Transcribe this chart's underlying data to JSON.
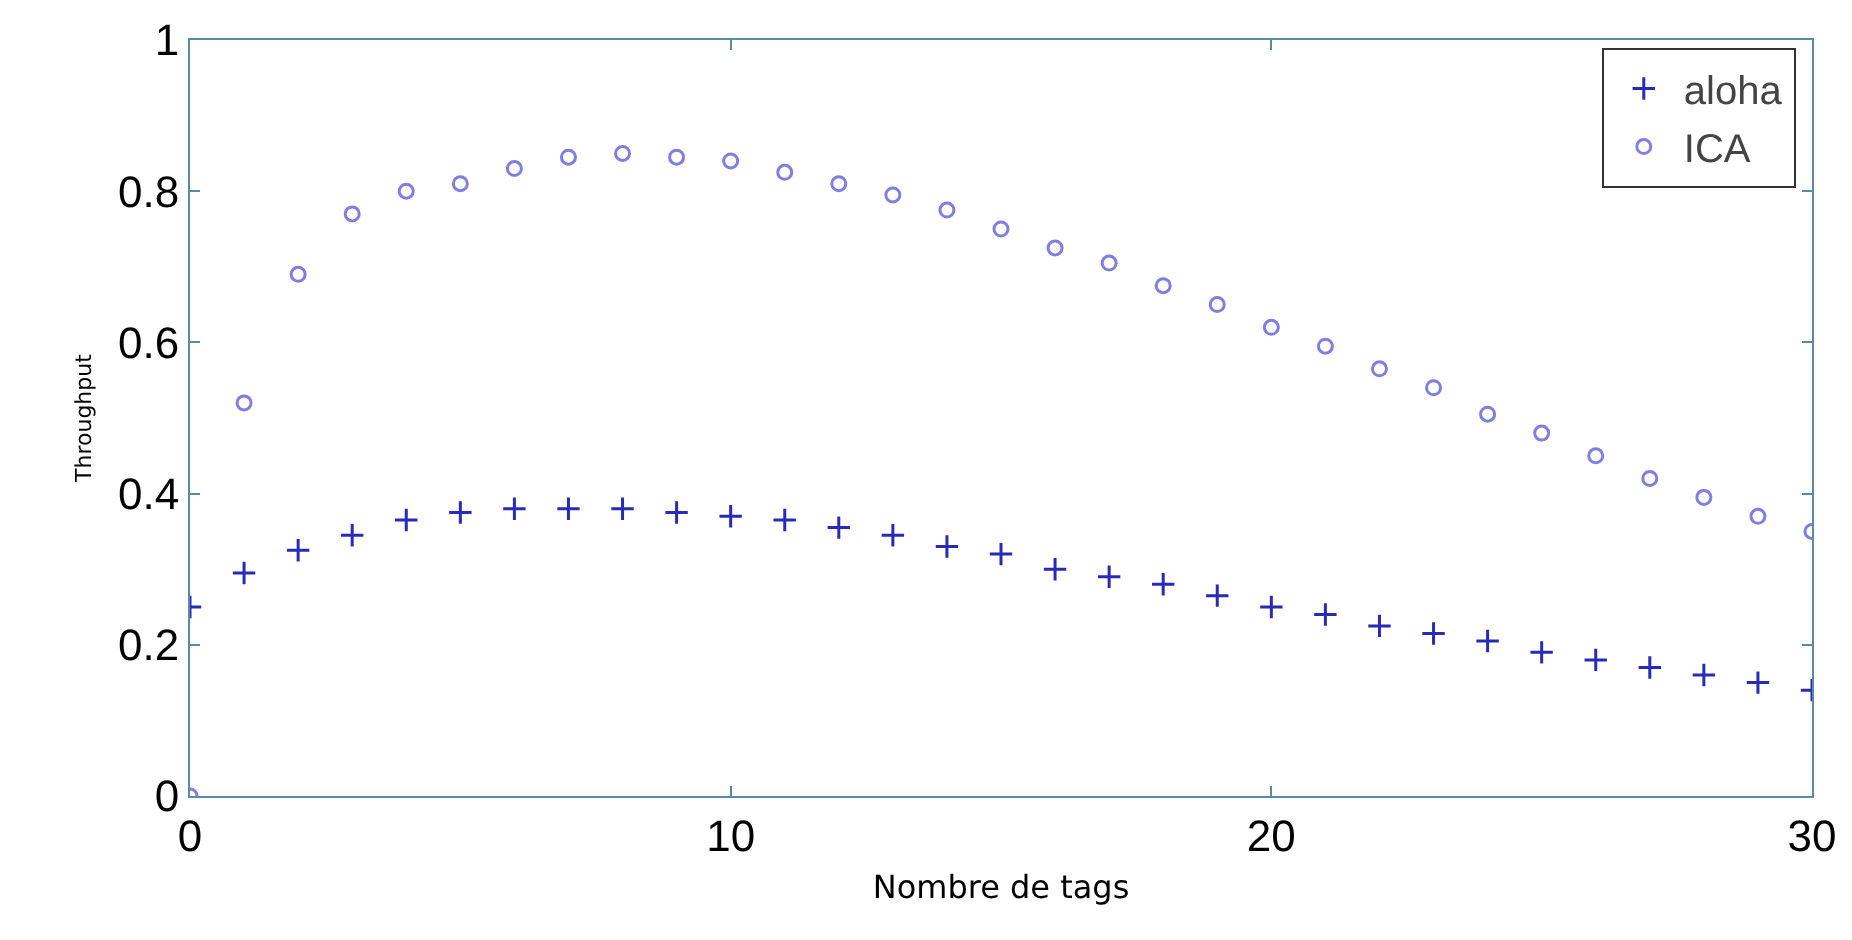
{
  "chart_data": {
    "type": "scatter",
    "xlabel": "Nombre de tags",
    "ylabel": "Throughput",
    "x": [
      0,
      1,
      2,
      3,
      4,
      5,
      6,
      7,
      8,
      9,
      10,
      11,
      12,
      13,
      14,
      15,
      16,
      17,
      18,
      19,
      20,
      21,
      22,
      23,
      24,
      25,
      26,
      27,
      28,
      29,
      30
    ],
    "series": [
      {
        "name": "aloha",
        "color": "#2a2ab8",
        "marker": "cross",
        "values": [
          0.25,
          0.295,
          0.325,
          0.345,
          0.365,
          0.375,
          0.38,
          0.38,
          0.38,
          0.375,
          0.37,
          0.365,
          0.355,
          0.345,
          0.33,
          0.32,
          0.3,
          0.29,
          0.28,
          0.265,
          0.25,
          0.24,
          0.225,
          0.215,
          0.205,
          0.19,
          0.18,
          0.17,
          0.16,
          0.15,
          0.14
        ]
      },
      {
        "name": "ICA",
        "color": "#7f7fe0",
        "marker": "circle",
        "values": [
          0,
          0.52,
          0.69,
          0.77,
          0.8,
          0.81,
          0.83,
          0.845,
          0.85,
          0.845,
          0.84,
          0.825,
          0.81,
          0.795,
          0.775,
          0.75,
          0.725,
          0.705,
          0.675,
          0.65,
          0.62,
          0.595,
          0.565,
          0.54,
          0.505,
          0.48,
          0.45,
          0.42,
          0.395,
          0.37,
          0.35
        ]
      }
    ],
    "xlim": [
      0,
      30
    ],
    "xticks": [
      0,
      10,
      20,
      30
    ],
    "ylim": [
      0,
      1
    ],
    "yticks": [
      0,
      0.2,
      0.4,
      0.6,
      0.8,
      1
    ],
    "grid": false,
    "legend": "top right"
  }
}
